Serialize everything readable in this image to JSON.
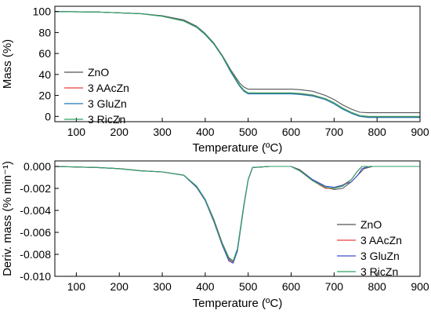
{
  "chart_data": [
    {
      "type": "line",
      "xlabel": "Temperature (ºC)",
      "ylabel": "Mass (%)",
      "xlim": [
        50,
        900
      ],
      "ylim": [
        -5,
        105
      ],
      "xticks": [
        100,
        200,
        300,
        400,
        500,
        600,
        700,
        800,
        900
      ],
      "yticks": [
        0,
        20,
        40,
        60,
        80,
        100
      ],
      "ytick_labels": [
        "0",
        "20",
        "40",
        "60",
        "80",
        "100"
      ],
      "grid": false,
      "legend_position": "left-middle",
      "series": [
        {
          "name": "ZnO",
          "color": "#555555",
          "x": [
            50,
            150,
            250,
            300,
            350,
            380,
            400,
            420,
            440,
            460,
            480,
            490,
            500,
            550,
            600,
            620,
            650,
            680,
            700,
            720,
            740,
            760,
            780,
            900
          ],
          "y": [
            100,
            99.5,
            98,
            96,
            92,
            86,
            79,
            70,
            58,
            44,
            32,
            28,
            26,
            26,
            26,
            25.5,
            24,
            20,
            16,
            11,
            7,
            4,
            3.5,
            3.5
          ]
        },
        {
          "name": "3 AAcZn",
          "color": "#e8413c",
          "x": [
            50,
            150,
            250,
            300,
            350,
            380,
            400,
            420,
            440,
            460,
            480,
            490,
            500,
            550,
            600,
            620,
            650,
            680,
            700,
            720,
            740,
            760,
            780,
            900
          ],
          "y": [
            100,
            99.5,
            98,
            95.5,
            91,
            85,
            78,
            69,
            57,
            42,
            29,
            24,
            22,
            22,
            22,
            21.5,
            20,
            16,
            12,
            7,
            3,
            0,
            -0.5,
            -0.5
          ]
        },
        {
          "name": "3 GluZn",
          "color": "#1f77b4",
          "x": [
            50,
            150,
            250,
            300,
            350,
            380,
            400,
            420,
            440,
            460,
            480,
            490,
            500,
            550,
            600,
            620,
            650,
            680,
            700,
            720,
            740,
            760,
            780,
            900
          ],
          "y": [
            100,
            99.5,
            98,
            95.5,
            91,
            85,
            78,
            69,
            57,
            42,
            29,
            24,
            21.5,
            21.5,
            21.5,
            21,
            19.5,
            16,
            12,
            7,
            3,
            0,
            -1,
            -1
          ]
        },
        {
          "name": "3 RicZn",
          "color": "#2ca25f",
          "x": [
            50,
            150,
            250,
            300,
            350,
            380,
            400,
            420,
            440,
            460,
            480,
            490,
            500,
            550,
            600,
            620,
            650,
            680,
            700,
            720,
            740,
            760,
            780,
            900
          ],
          "y": [
            100,
            99.5,
            98,
            95.5,
            91,
            85.5,
            78.5,
            69.5,
            57.5,
            43,
            30,
            25,
            22.5,
            22.5,
            22.5,
            22,
            20.5,
            17,
            13,
            8,
            4,
            1,
            0,
            0
          ]
        }
      ]
    },
    {
      "type": "line",
      "xlabel": "Temperature (ºC)",
      "ylabel": "Deriv. mass (% min⁻¹)",
      "xlim": [
        50,
        900
      ],
      "ylim": [
        -0.01,
        0.0005
      ],
      "xticks": [
        100,
        200,
        300,
        400,
        500,
        600,
        700,
        800,
        900
      ],
      "yticks": [
        0,
        -0.002,
        -0.004,
        -0.006,
        -0.008,
        -0.01
      ],
      "ytick_labels": [
        "0.000",
        "-0.002",
        "-0.004",
        "-0.006",
        "-0.008",
        "-0.010"
      ],
      "grid": false,
      "legend_position": "bottom-right",
      "series": [
        {
          "name": "ZnO",
          "color": "#555555",
          "x": [
            50,
            150,
            200,
            250,
            300,
            350,
            380,
            400,
            420,
            440,
            455,
            465,
            475,
            490,
            500,
            510,
            550,
            600,
            620,
            650,
            680,
            700,
            720,
            740,
            760,
            770,
            790,
            900
          ],
          "y": [
            0,
            -0.0001,
            -0.0002,
            -0.0004,
            -0.0005,
            -0.0008,
            -0.0018,
            -0.003,
            -0.0048,
            -0.007,
            -0.0083,
            -0.0086,
            -0.0075,
            -0.0035,
            -0.0012,
            -0.0001,
            0,
            0,
            -0.0003,
            -0.0012,
            -0.0019,
            -0.0021,
            -0.002,
            -0.0014,
            -0.0006,
            -0.0002,
            0,
            0
          ]
        },
        {
          "name": "3 AAcZn",
          "color": "#e8413c",
          "x": [
            50,
            150,
            200,
            250,
            300,
            350,
            380,
            400,
            420,
            440,
            455,
            465,
            475,
            490,
            500,
            510,
            550,
            600,
            620,
            650,
            680,
            700,
            720,
            740,
            755,
            765,
            780,
            900
          ],
          "y": [
            0,
            -0.0001,
            -0.0002,
            -0.0004,
            -0.0005,
            -0.0008,
            -0.0019,
            -0.0031,
            -0.005,
            -0.0072,
            -0.0085,
            -0.0087,
            -0.0076,
            -0.0036,
            -0.0012,
            -0.0001,
            0,
            0,
            -0.0004,
            -0.0013,
            -0.002,
            -0.002,
            -0.0017,
            -0.0012,
            -0.0004,
            0,
            0,
            0
          ]
        },
        {
          "name": "3 GluZn",
          "color": "#3a4fd0",
          "x": [
            50,
            150,
            200,
            250,
            300,
            350,
            380,
            400,
            420,
            440,
            455,
            465,
            475,
            490,
            500,
            510,
            550,
            600,
            620,
            650,
            680,
            700,
            720,
            740,
            755,
            765,
            780,
            900
          ],
          "y": [
            0,
            -0.0001,
            -0.0002,
            -0.0004,
            -0.0005,
            -0.0008,
            -0.0019,
            -0.0031,
            -0.005,
            -0.0072,
            -0.0086,
            -0.0088,
            -0.0077,
            -0.0036,
            -0.0012,
            -0.0001,
            0,
            0,
            -0.0004,
            -0.0012,
            -0.0018,
            -0.0019,
            -0.0017,
            -0.0014,
            -0.0008,
            -0.0002,
            0,
            0
          ]
        },
        {
          "name": "3 RicZn",
          "color": "#2ca25f",
          "x": [
            50,
            150,
            200,
            250,
            300,
            350,
            380,
            400,
            420,
            440,
            455,
            465,
            475,
            490,
            500,
            510,
            550,
            600,
            620,
            650,
            680,
            700,
            720,
            740,
            755,
            765,
            780,
            900
          ],
          "y": [
            0,
            -0.0001,
            -0.0002,
            -0.0004,
            -0.0005,
            -0.0008,
            -0.0018,
            -0.003,
            -0.0049,
            -0.0071,
            -0.0084,
            -0.0086,
            -0.0075,
            -0.0035,
            -0.0012,
            -0.0001,
            0,
            0,
            -0.0004,
            -0.0013,
            -0.0019,
            -0.002,
            -0.0018,
            -0.0012,
            -0.0004,
            0,
            0,
            0
          ]
        }
      ]
    }
  ]
}
